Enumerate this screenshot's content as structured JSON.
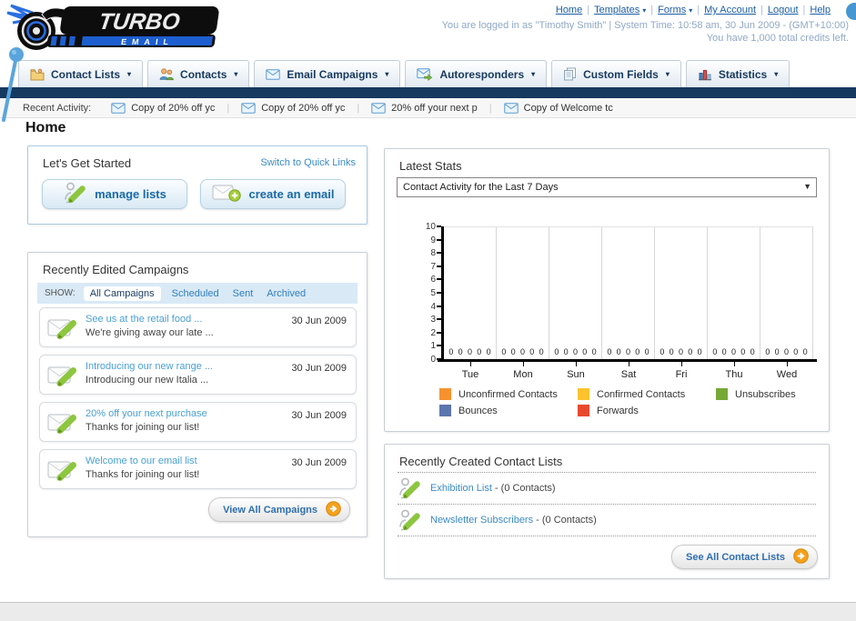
{
  "header": {
    "logo": {
      "title": "TURBO",
      "subtitle": "EMAIL"
    },
    "nav_links": [
      "Home",
      "Templates",
      "Forms",
      "My Account",
      "Logout",
      "Help"
    ],
    "nav_dropdown_flags": [
      false,
      true,
      true,
      false,
      false,
      false
    ],
    "login_line": "You are logged in as \"Timothy Smith\" | System Time: 10:58 am, 30 Jun 2009 - (GMT+10:00)",
    "credits_line": "You have 1,000 total credits left."
  },
  "nav_tabs": [
    {
      "label": "Contact Lists",
      "icon": "folder-icon"
    },
    {
      "label": "Contacts",
      "icon": "contacts-icon"
    },
    {
      "label": "Email Campaigns",
      "icon": "envelope-icon"
    },
    {
      "label": "Autoresponders",
      "icon": "envelope-arrow-icon"
    },
    {
      "label": "Custom Fields",
      "icon": "pages-icon"
    },
    {
      "label": "Statistics",
      "icon": "bar-chart-icon"
    }
  ],
  "recent_activity": {
    "label": "Recent Activity:",
    "item_icon": "envelope-icon",
    "items": [
      "Copy of 20% off yc",
      "Copy of 20% off yc",
      "20% off your next p",
      "Copy of Welcome tc"
    ]
  },
  "page_title": "Home",
  "get_started": {
    "title": "Let's Get Started",
    "switch_link": "Switch to Quick Links",
    "buttons": [
      {
        "label": "manage lists",
        "icon": "person-pencil-icon"
      },
      {
        "label": "create an email",
        "icon": "envelope-plus-icon"
      }
    ]
  },
  "campaigns": {
    "title": "Recently Edited Campaigns",
    "show_label": "SHOW:",
    "filters": [
      "All Campaigns",
      "Scheduled",
      "Sent",
      "Archived"
    ],
    "active_filter": "All Campaigns",
    "item_icon": "envelope-pencil-icon",
    "items": [
      {
        "title": "See us at the retail food ...",
        "subtitle": "We're giving away our late ...",
        "date": "30 Jun 2009"
      },
      {
        "title": "Introducing our new range ...",
        "subtitle": "Introducing our new Italia ...",
        "date": "30 Jun 2009"
      },
      {
        "title": "20% off your next purchase",
        "subtitle": "Thanks for joining our list!",
        "date": "30 Jun 2009"
      },
      {
        "title": "Welcome to our email list",
        "subtitle": "Thanks for joining our list!",
        "date": "30 Jun 2009"
      }
    ],
    "view_all_label": "View All Campaigns",
    "view_all_icon": "arrow-circle-icon"
  },
  "latest_stats": {
    "title": "Latest Stats",
    "selected_option": "Contact Activity for the Last 7 Days",
    "dropdown_icon": "caret-down-icon"
  },
  "chart_data": {
    "type": "bar",
    "title": "Contact Activity for the Last 7 Days",
    "categories": [
      "Tue",
      "Mon",
      "Sun",
      "Sat",
      "Fri",
      "Thu",
      "Wed"
    ],
    "series": [
      {
        "name": "Unconfirmed Contacts",
        "color": "#f6922e",
        "values": [
          0,
          0,
          0,
          0,
          0,
          0,
          0
        ]
      },
      {
        "name": "Confirmed Contacts",
        "color": "#fdc32f",
        "values": [
          0,
          0,
          0,
          0,
          0,
          0,
          0
        ]
      },
      {
        "name": "Unsubscribes",
        "color": "#76a837",
        "values": [
          0,
          0,
          0,
          0,
          0,
          0,
          0
        ]
      },
      {
        "name": "Bounces",
        "color": "#5b76ad",
        "values": [
          0,
          0,
          0,
          0,
          0,
          0,
          0
        ]
      },
      {
        "name": "Forwards",
        "color": "#e8492e",
        "values": [
          0,
          0,
          0,
          0,
          0,
          0,
          0
        ]
      }
    ],
    "xlabel": "",
    "ylabel": "",
    "ylim": [
      0,
      10
    ],
    "ytick_step": 1,
    "grid": true,
    "legend_position": "bottom"
  },
  "contact_lists": {
    "title": "Recently Created Contact Lists",
    "item_icon": "person-pencil-icon",
    "items": [
      {
        "name": "Exhibition List",
        "detail": " - (0 Contacts)"
      },
      {
        "name": "Newsletter Subscribers",
        "detail": " - (0 Contacts)"
      }
    ],
    "see_all_label": "See All Contact Lists",
    "see_all_icon": "arrow-circle-icon"
  },
  "colors": {
    "navy": "#16395f",
    "link_blue": "#2f7fc0",
    "campaign_link": "#4aa0d5",
    "button_orange": "#f5a11c",
    "pin_blue": "#5aa5dd"
  }
}
